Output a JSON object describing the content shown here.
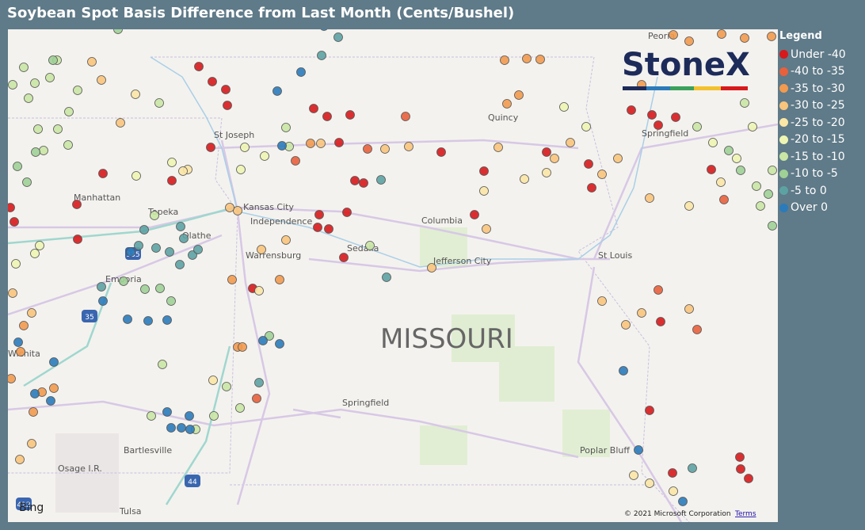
{
  "title": "Soybean Spot Basis Difference from Last Month (Cents/Bushel)",
  "legend": {
    "title": "Legend",
    "items": [
      {
        "label": "Under -40",
        "color": "#d7191c"
      },
      {
        "label": "-40 to -35",
        "color": "#e8603c"
      },
      {
        "label": "-35 to -30",
        "color": "#f29a4e"
      },
      {
        "label": "-30 to -25",
        "color": "#f9c47c"
      },
      {
        "label": "-25 to -20",
        "color": "#fbe6a6"
      },
      {
        "label": "-20 to -15",
        "color": "#eef5b2"
      },
      {
        "label": "-15 to -10",
        "color": "#c9e6a4"
      },
      {
        "label": "-10 to -5",
        "color": "#9fd096"
      },
      {
        "label": "-5 to 0",
        "color": "#5da2a3"
      },
      {
        "label": "Over 0",
        "color": "#2b7bba"
      }
    ]
  },
  "map": {
    "state_label": "MISSOURI",
    "places": [
      "St Joseph",
      "Kansas City",
      "Independence",
      "Manhattan",
      "Topeka",
      "Olathe",
      "Columbia",
      "Sedalia",
      "Warrensburg",
      "Jefferson City",
      "Emporia",
      "St Louis",
      "Springfield",
      "Quincy",
      "Peoria",
      "Wichita",
      "Springfield",
      "Bartlesville",
      "Osage I.R.",
      "Poplar Bluff",
      "Tulsa"
    ],
    "shields": [
      "335",
      "35",
      "44",
      "412"
    ],
    "logo": "StoneX",
    "provider": "Bing",
    "copyright": "© 2021 Microsoft Corporation",
    "terms": "Terms"
  }
}
